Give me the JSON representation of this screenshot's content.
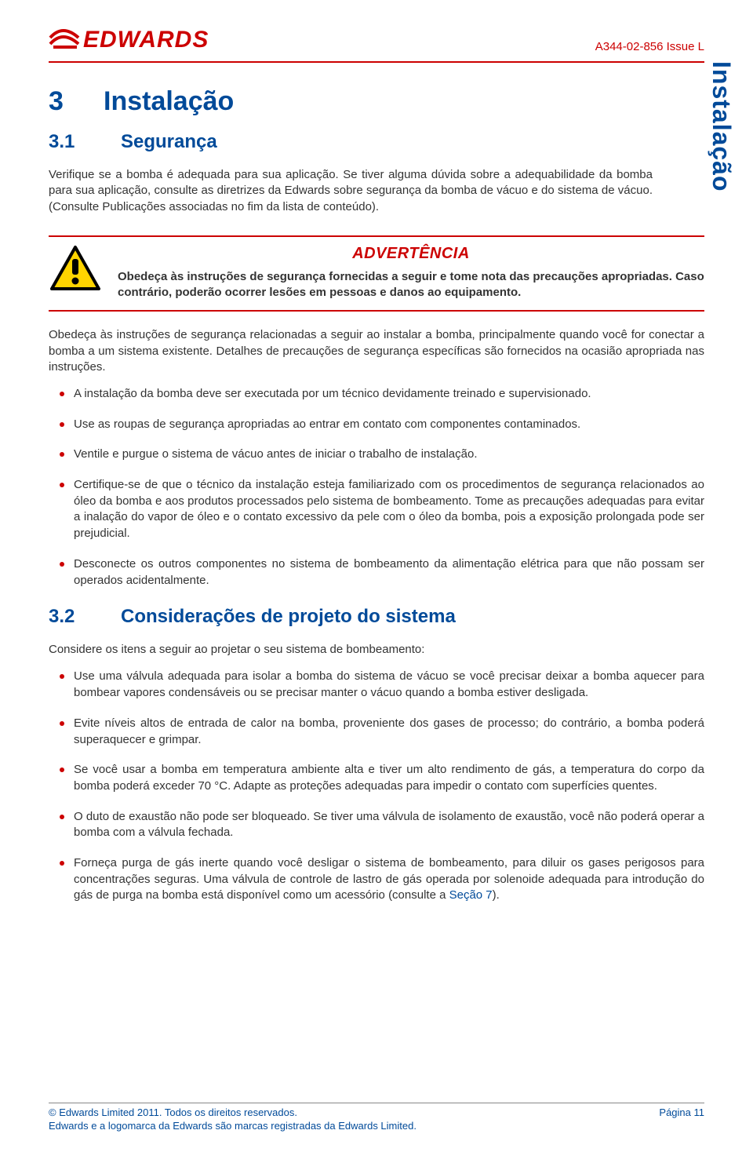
{
  "colors": {
    "red": "#c00",
    "blue": "#004a99",
    "text": "#333",
    "rule_gray": "#888",
    "warn_tri_border": "#000",
    "warn_tri_fill": "#ffd400"
  },
  "header": {
    "logo_word": "EDWARDS",
    "doc_id": "A344-02-856 Issue L"
  },
  "side_tab": "Instalação",
  "section": {
    "num": "3",
    "title": "Instalação"
  },
  "sub1": {
    "num": "3.1",
    "title": "Segurança"
  },
  "intro_p1": "Verifique se a bomba é adequada para sua aplicação. Se tiver alguma dúvida sobre a adequabilidade da bomba para sua aplicação, consulte as diretrizes da Edwards sobre segurança da bomba de vácuo e do sistema de vácuo. (Consulte Publicações associadas no fim da lista de conteúdo).",
  "warning": {
    "title": "ADVERTÊNCIA",
    "body": "Obedeça às instruções de segurança fornecidas a seguir e tome nota das precauções apropriadas. Caso contrário, poderão ocorrer lesões em pessoas e danos ao equipamento."
  },
  "after_warning_p": "Obedeça às instruções de segurança relacionadas a seguir ao instalar a bomba, principalmente quando você for conectar a bomba a um sistema existente. Detalhes de precauções de segurança específicas são fornecidos na ocasião apropriada nas instruções.",
  "bullets_a": [
    "A instalação da bomba deve ser executada por um técnico devidamente treinado e supervisionado.",
    "Use as roupas de segurança apropriadas ao entrar em contato com componentes contaminados.",
    "Ventile e purgue o sistema de vácuo antes de iniciar o trabalho de instalação.",
    "Certifique-se de que o técnico da instalação esteja familiarizado com os procedimentos de segurança relacionados ao óleo da bomba e aos produtos processados pelo sistema de bombeamento. Tome as precauções adequadas para evitar a inalação do vapor de óleo e o contato excessivo da pele com o óleo da bomba, pois a exposição prolongada pode ser prejudicial.",
    "Desconecte os outros componentes no sistema de bombeamento da alimentação elétrica para que não possam ser operados acidentalmente."
  ],
  "sub2": {
    "num": "3.2",
    "title": "Considerações de projeto do sistema"
  },
  "p_consider": "Considere os itens a seguir ao projetar o seu sistema de bombeamento:",
  "bullets_b": [
    "Use uma válvula adequada para isolar a bomba do sistema de vácuo se você precisar deixar a bomba aquecer para bombear vapores condensáveis ou se precisar manter o vácuo quando a bomba estiver desligada.",
    "Evite níveis altos de entrada de calor na bomba, proveniente dos gases de processo; do contrário, a bomba poderá superaquecer e grimpar.",
    "Se você usar a bomba em temperatura ambiente alta e tiver um alto rendimento de gás, a temperatura do corpo da bomba poderá exceder 70 °C. Adapte as proteções adequadas para impedir o contato com superfícies quentes.",
    "O duto de exaustão não pode ser bloqueado. Se tiver uma válvula de isolamento de exaustão, você não poderá operar a bomba com a válvula fechada."
  ],
  "bullet_b_last": {
    "pre": "Forneça purga de gás inerte quando você desligar o sistema de bombeamento, para diluir os gases perigosos para concentrações seguras. Uma válvula de controle de lastro de gás operada por solenoide adequada para introdução do gás de purga na bomba está disponível como um acessório (consulte a ",
    "link": "Seção 7",
    "post": ")."
  },
  "footer": {
    "copyright": "© Edwards Limited 2011. Todos os direitos reservados.",
    "page": "Página 11",
    "trademark": "Edwards e a logomarca da Edwards são marcas registradas da Edwards Limited."
  }
}
